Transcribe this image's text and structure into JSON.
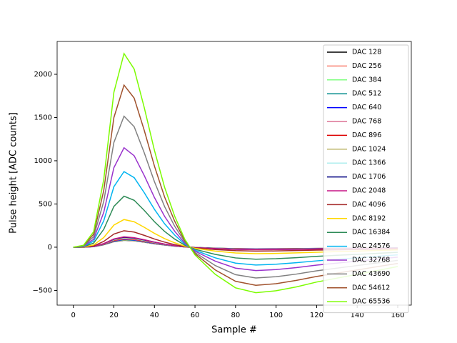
{
  "chart_data": {
    "type": "line",
    "xlabel": "Sample #",
    "ylabel": "Pulse height [ADC counts]",
    "x": [
      0,
      5,
      10,
      15,
      20,
      25,
      30,
      35,
      40,
      45,
      50,
      55,
      60,
      70,
      80,
      90,
      100,
      110,
      120,
      130,
      140,
      150,
      160
    ],
    "xlim": [
      -8,
      166.7
    ],
    "xticks": [
      0,
      20,
      40,
      60,
      80,
      100,
      120,
      140,
      160
    ],
    "ylim": [
      -670,
      2380
    ],
    "yticks": [
      {
        "value": -500,
        "label": "−500"
      },
      0,
      500,
      1000,
      1500,
      2000
    ],
    "legend": "upper right",
    "series": [
      {
        "name": "DAC 128",
        "color": "#000000",
        "values": [
          0,
          1,
          6,
          28,
          64,
          80,
          74,
          58,
          40,
          25,
          13,
          3,
          -3,
          -11,
          -17,
          -19,
          -18,
          -16,
          -14,
          -13,
          -11,
          -10,
          -8
        ]
      },
      {
        "name": "DAC 256",
        "color": "#fa8072",
        "values": [
          0,
          1,
          7,
          29,
          66,
          82,
          75,
          59,
          41,
          25,
          13,
          3,
          -3,
          -11,
          -17,
          -19,
          -18,
          -17,
          -15,
          -13,
          -11,
          -10,
          -8
        ]
      },
      {
        "name": "DAC 384",
        "color": "#80ff80",
        "values": [
          0,
          1,
          7,
          30,
          68,
          85,
          78,
          61,
          43,
          26,
          14,
          3,
          -3,
          -12,
          -18,
          -20,
          -19,
          -17,
          -15,
          -14,
          -12,
          -10,
          -9
        ]
      },
      {
        "name": "DAC 512",
        "color": "#008b8b",
        "values": [
          0,
          1,
          7,
          31,
          70,
          88,
          81,
          63,
          44,
          27,
          14,
          4,
          -4,
          -12,
          -18,
          -21,
          -20,
          -18,
          -16,
          -14,
          -12,
          -11,
          -9
        ]
      },
      {
        "name": "DAC 640",
        "color": "#0000ff",
        "values": [
          0,
          1,
          7,
          32,
          72,
          90,
          83,
          65,
          45,
          28,
          14,
          4,
          -4,
          -13,
          -19,
          -21,
          -20,
          -18,
          -16,
          -14,
          -13,
          -11,
          -9
        ]
      },
      {
        "name": "DAC 768",
        "color": "#db7093",
        "values": [
          0,
          1,
          8,
          33,
          76,
          95,
          87,
          68,
          48,
          29,
          15,
          4,
          -4,
          -13,
          -20,
          -22,
          -21,
          -19,
          -17,
          -15,
          -13,
          -11,
          -10
        ]
      },
      {
        "name": "DAC 896",
        "color": "#dd0000",
        "values": [
          0,
          1,
          8,
          35,
          80,
          100,
          92,
          72,
          50,
          31,
          16,
          4,
          -4,
          -14,
          -21,
          -24,
          -23,
          -21,
          -18,
          -16,
          -14,
          -12,
          -10
        ]
      },
      {
        "name": "DAC 1024",
        "color": "#bdb76b",
        "values": [
          0,
          1,
          8,
          37,
          84,
          105,
          97,
          76,
          53,
          33,
          17,
          4,
          -4,
          -15,
          -22,
          -25,
          -24,
          -22,
          -19,
          -17,
          -15,
          -13,
          -11
        ]
      },
      {
        "name": "DAC 1366",
        "color": "#afeeee",
        "values": [
          0,
          1,
          9,
          39,
          88,
          110,
          101,
          79,
          55,
          34,
          18,
          4,
          -4,
          -15,
          -23,
          -26,
          -25,
          -23,
          -20,
          -18,
          -15,
          -13,
          -11
        ]
      },
      {
        "name": "DAC 1706",
        "color": "#000080",
        "values": [
          0,
          1,
          9,
          40,
          92,
          115,
          106,
          83,
          58,
          36,
          18,
          5,
          -5,
          -16,
          -24,
          -27,
          -26,
          -24,
          -21,
          -18,
          -16,
          -14,
          -12
        ]
      },
      {
        "name": "DAC 2048",
        "color": "#c71585",
        "values": [
          0,
          1,
          10,
          42,
          96,
          120,
          110,
          86,
          60,
          37,
          19,
          5,
          -5,
          -17,
          -25,
          -28,
          -27,
          -25,
          -22,
          -19,
          -17,
          -14,
          -12
        ]
      },
      {
        "name": "DAC 4096",
        "color": "#a52a2a",
        "values": [
          0,
          2,
          15,
          67,
          152,
          190,
          175,
          137,
          95,
          59,
          30,
          8,
          -8,
          -27,
          -40,
          -45,
          -43,
          -39,
          -34,
          -30,
          -27,
          -23,
          -19
        ]
      },
      {
        "name": "DAC 8192",
        "color": "#ffd700",
        "values": [
          0,
          3,
          26,
          112,
          256,
          320,
          294,
          230,
          160,
          99,
          51,
          13,
          -13,
          -45,
          -67,
          -75,
          -72,
          -66,
          -58,
          -51,
          -45,
          -38,
          -32
        ]
      },
      {
        "name": "DAC 16384",
        "color": "#2e8b57",
        "values": [
          0,
          6,
          47,
          207,
          472,
          590,
          543,
          425,
          295,
          183,
          94,
          24,
          -24,
          -83,
          -124,
          -139,
          -133,
          -121,
          -106,
          -94,
          -83,
          -71,
          -59
        ]
      },
      {
        "name": "DAC 24576",
        "color": "#00b4f0",
        "values": [
          0,
          9,
          70,
          306,
          700,
          875,
          805,
          630,
          438,
          271,
          140,
          35,
          -35,
          -123,
          -184,
          -206,
          -197,
          -179,
          -158,
          -140,
          -123,
          -105,
          -88
        ]
      },
      {
        "name": "DAC 32768",
        "color": "#9932cc",
        "values": [
          0,
          12,
          92,
          403,
          920,
          1150,
          1058,
          828,
          575,
          357,
          184,
          46,
          -46,
          -161,
          -242,
          -270,
          -259,
          -236,
          -207,
          -184,
          -161,
          -138,
          -115
        ]
      },
      {
        "name": "DAC 43690",
        "color": "#808080",
        "values": [
          0,
          15,
          121,
          530,
          1212,
          1515,
          1394,
          1091,
          758,
          470,
          242,
          61,
          -61,
          -212,
          -318,
          -356,
          -341,
          -311,
          -273,
          -242,
          -212,
          -182,
          -152
        ]
      },
      {
        "name": "DAC 54612",
        "color": "#a0522d",
        "values": [
          0,
          19,
          150,
          656,
          1500,
          1875,
          1725,
          1350,
          938,
          581,
          300,
          75,
          -75,
          -263,
          -394,
          -441,
          -422,
          -384,
          -338,
          -300,
          -263,
          -225,
          -188
        ]
      },
      {
        "name": "DAC 65536",
        "color": "#7cfc00",
        "values": [
          0,
          22,
          179,
          784,
          1792,
          2240,
          2061,
          1613,
          1120,
          694,
          358,
          90,
          -90,
          -314,
          -470,
          -526,
          -504,
          -459,
          -403,
          -358,
          -314,
          -269,
          -224
        ]
      }
    ]
  }
}
